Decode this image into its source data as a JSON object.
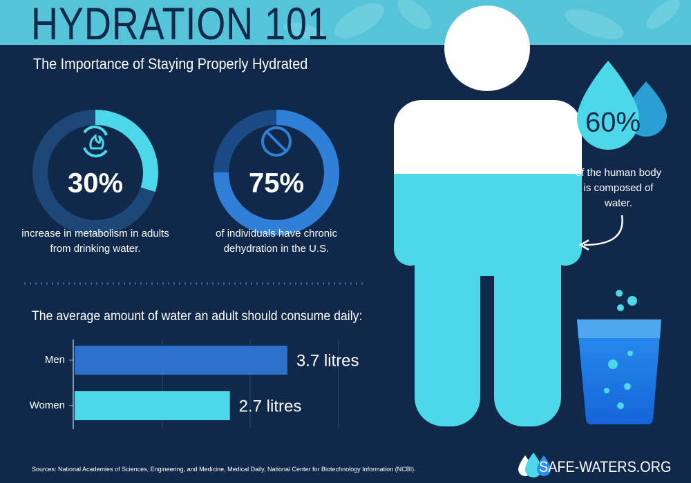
{
  "header": {
    "title": "HYDRATION 101",
    "subtitle": "The Importance of Staying Properly Hydrated"
  },
  "stats": [
    {
      "value": 30,
      "value_label": "30%",
      "text": "increase in metabolism in adults from drinking water."
    },
    {
      "value": 75,
      "value_label": "75%",
      "text": "of individuals have chronic dehydration in the U.S."
    }
  ],
  "body_water": {
    "value": 60,
    "value_label": "60%",
    "text": "of the human body is composed of water."
  },
  "chart_data": {
    "type": "bar",
    "title": "The average amount of water an adult should consume daily:",
    "categories": [
      "Men",
      "Women"
    ],
    "values": [
      3.7,
      2.7
    ],
    "value_labels": [
      "3.7 litres",
      "2.7 litres"
    ],
    "colors": [
      "#2f6fcc",
      "#4dd8ea"
    ]
  },
  "footer": {
    "sources": "Sources: National Academies of Sciences, Engineering, and Medicine, Medical Daily, National Center for Biotechnology Information (NCBI).",
    "brand": "SAFE-WATERS.ORG"
  }
}
